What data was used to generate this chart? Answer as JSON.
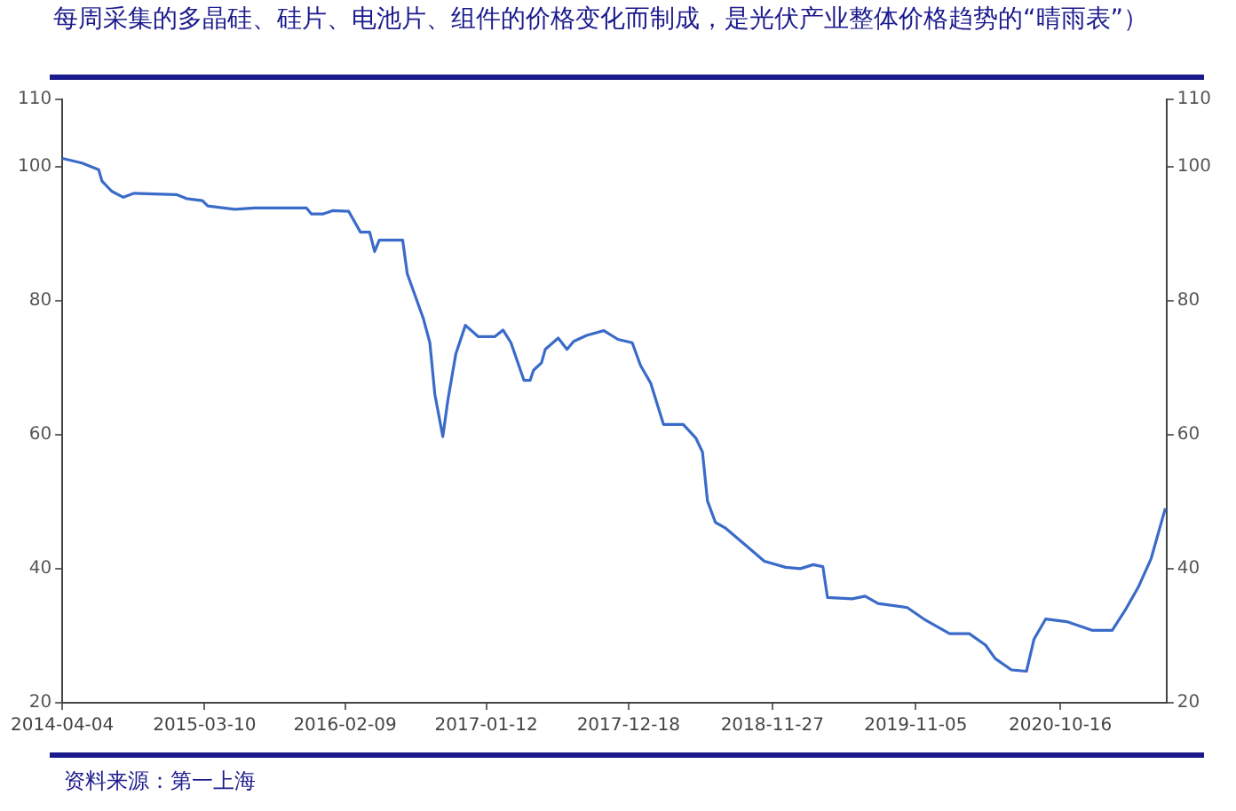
{
  "chart_data": {
    "type": "line",
    "title": "每周采集的多晶硅、硅片、电池片、组件的价格变化而制成，是光伏产业整体价格趋势的“晴雨表”）",
    "annotations": [
      "资料来源：第一上海"
    ],
    "x": [
      "2014-04-04",
      "2014-05-21",
      "2014-06-30",
      "2014-07-08",
      "2014-07-31",
      "2014-08-28",
      "2014-09-23",
      "2015-01-02",
      "2015-01-26",
      "2015-03-05",
      "2015-03-18",
      "2015-05-22",
      "2015-07-08",
      "2015-11-09",
      "2015-11-21",
      "2015-12-18",
      "2016-01-10",
      "2016-02-18",
      "2016-03-17",
      "2016-04-08",
      "2016-04-20",
      "2016-05-01",
      "2016-06-26",
      "2016-07-07",
      "2016-08-15",
      "2016-08-30",
      "2016-09-11",
      "2016-09-30",
      "2016-10-12",
      "2016-10-31",
      "2016-11-23",
      "2016-12-24",
      "2017-02-01",
      "2017-02-21",
      "2017-03-12",
      "2017-04-12",
      "2017-04-27",
      "2017-05-05",
      "2017-05-24",
      "2017-06-02",
      "2017-07-03",
      "2017-07-24",
      "2017-08-09",
      "2017-09-09",
      "2017-10-20",
      "2017-11-23",
      "2017-12-27",
      "2018-01-16",
      "2018-02-09",
      "2018-03-12",
      "2018-04-28",
      "2018-05-28",
      "2018-06-13",
      "2018-06-25",
      "2018-07-14",
      "2018-08-06",
      "2018-09-30",
      "2018-11-08",
      "2018-12-29",
      "2019-02-02",
      "2019-03-05",
      "2019-03-28",
      "2019-04-08",
      "2019-06-06",
      "2019-07-07",
      "2019-08-07",
      "2019-10-16",
      "2019-11-24",
      "2020-01-25",
      "2020-03-12",
      "2020-04-20",
      "2020-05-13",
      "2020-06-21",
      "2020-07-27",
      "2020-08-14",
      "2020-09-11",
      "2020-10-31",
      "2021-01-01",
      "2021-02-17",
      "2021-03-20",
      "2021-04-20",
      "2021-05-21",
      "2021-06-24"
    ],
    "series": [
      {
        "color": "#3a6bc9",
        "values": [
          101.2,
          100.5,
          99.5,
          97.8,
          96.3,
          95.4,
          96.0,
          95.8,
          95.2,
          94.9,
          94.1,
          93.6,
          93.8,
          93.8,
          92.9,
          92.9,
          93.4,
          93.3,
          90.2,
          90.2,
          87.3,
          89.0,
          89.0,
          84.0,
          77.2,
          73.7,
          66.0,
          59.7,
          65.1,
          72.0,
          76.3,
          74.6,
          74.6,
          75.6,
          73.7,
          68.1,
          68.1,
          69.6,
          70.7,
          72.7,
          74.4,
          72.7,
          73.9,
          74.8,
          75.5,
          74.2,
          73.7,
          70.3,
          67.7,
          61.5,
          61.5,
          59.5,
          57.4,
          50.1,
          46.9,
          46.1,
          43.2,
          41.1,
          40.2,
          40.0,
          40.6,
          40.3,
          35.7,
          35.5,
          35.9,
          34.8,
          34.2,
          32.5,
          30.3,
          30.3,
          28.6,
          26.6,
          24.9,
          24.7,
          29.5,
          32.5,
          32.1,
          30.8,
          30.8,
          33.8,
          37.2,
          41.5,
          49.0
        ]
      }
    ],
    "xlim": [
      "2014-04-04",
      "2021-06-27"
    ],
    "xticks": [
      "2014-04-04",
      "2015-03-10",
      "2016-02-09",
      "2017-01-12",
      "2017-12-18",
      "2018-11-27",
      "2019-11-05",
      "2020-10-16"
    ],
    "ylim": [
      20,
      110
    ],
    "yticks": [
      20,
      40,
      60,
      80,
      100,
      110
    ],
    "y2lim": [
      20,
      110
    ],
    "y2ticks": [
      20,
      40,
      60,
      80,
      100,
      110
    ],
    "grid": false,
    "legend": false,
    "marker": "none",
    "line_style": "solid"
  }
}
